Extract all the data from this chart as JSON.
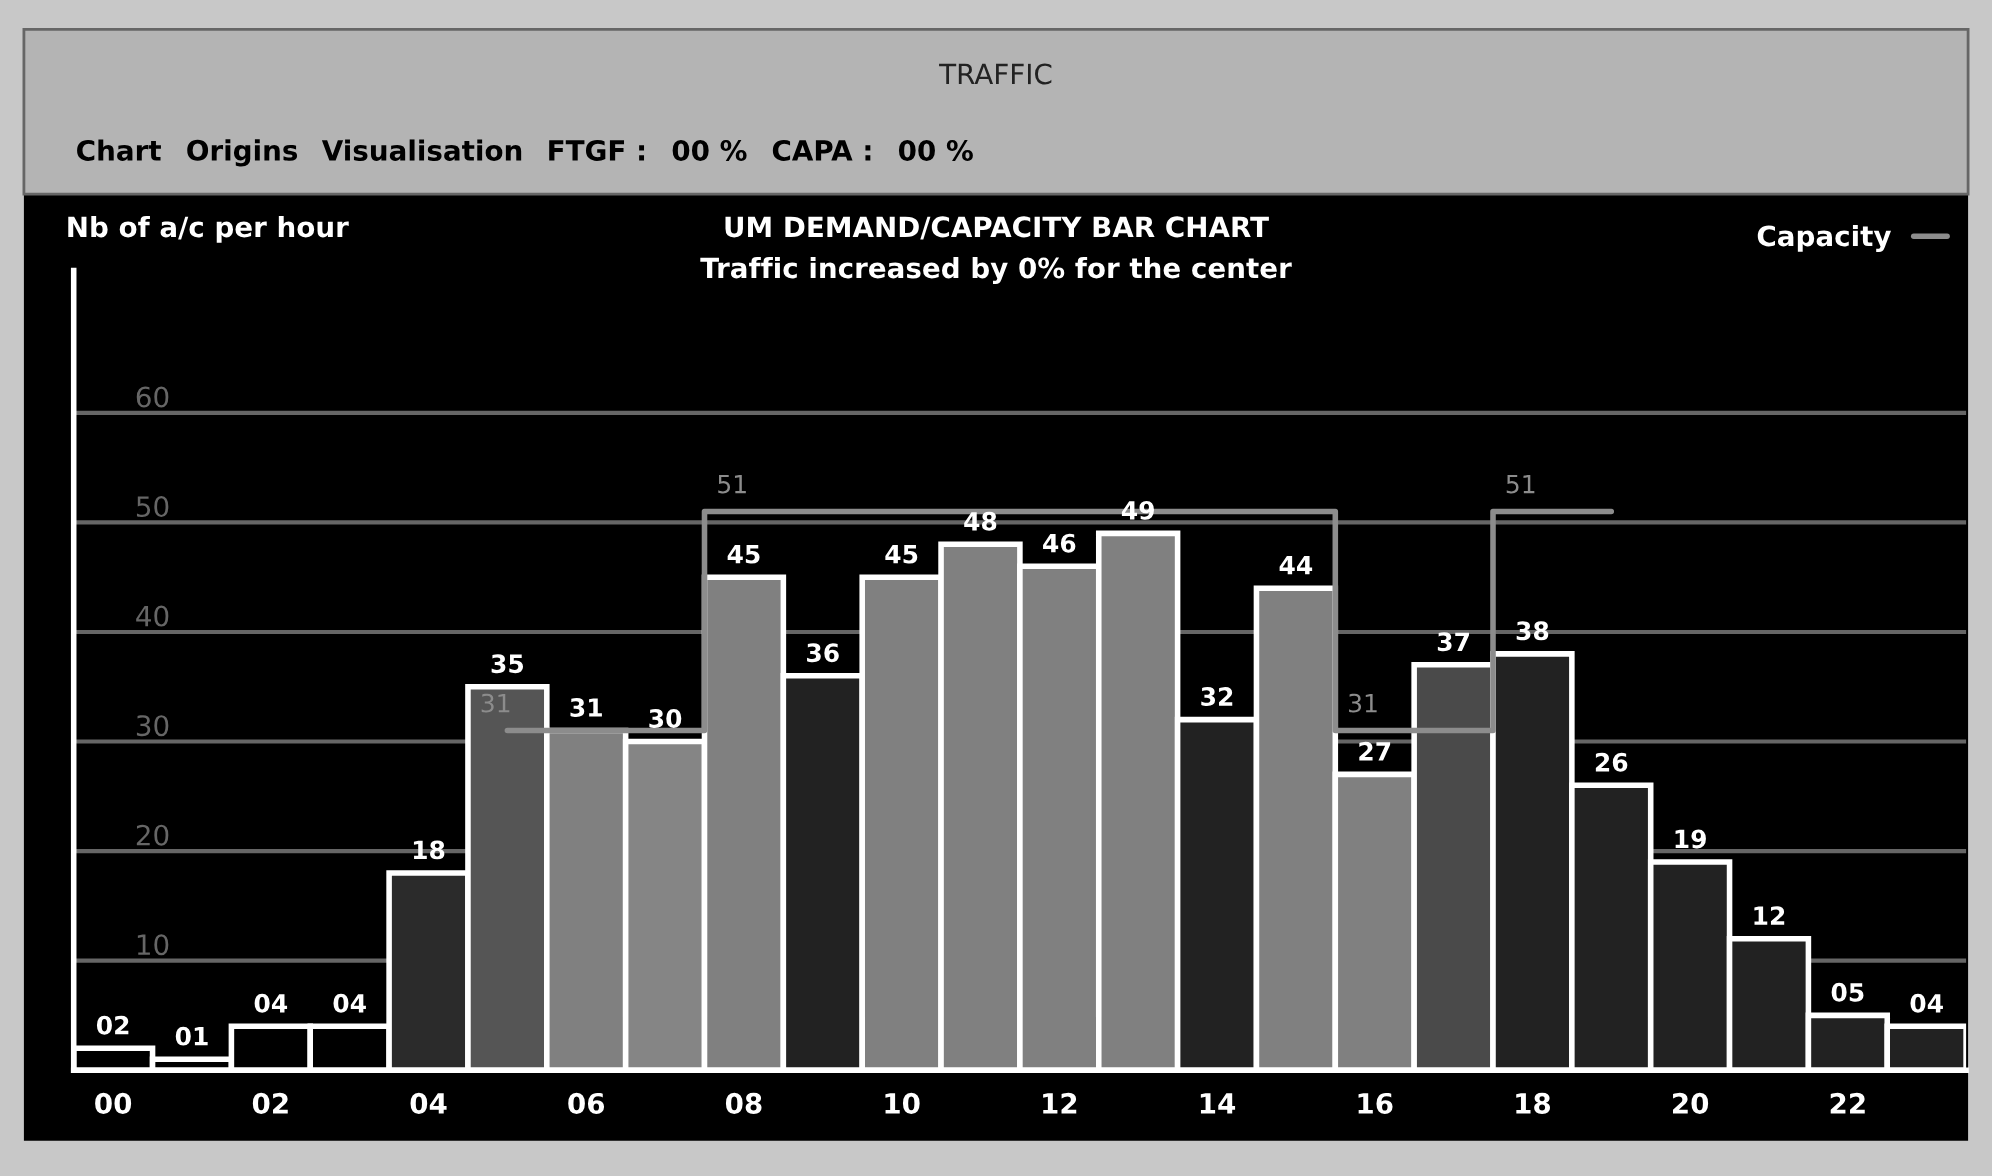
{
  "chart_data": {
    "type": "bar",
    "title": "UM DEMAND/CAPACITY BAR CHART",
    "subtitle": "Traffic increased by 0% for the center",
    "ylabel": "Nb of a/c per hour",
    "annotations": [
      "TRAFFIC",
      "Chart",
      "Origins",
      "Visualisation",
      "FTGF :",
      "00 %",
      "CAPA :",
      "00 %"
    ],
    "categories": [
      "00",
      null,
      "02",
      null,
      "04",
      null,
      "06",
      null,
      "08",
      null,
      "10",
      null,
      "12",
      null,
      "14",
      null,
      "16",
      null,
      "18",
      null,
      "20",
      null,
      "22",
      null
    ],
    "series": [
      {
        "colors": [
          "#000000",
          "#000000",
          "#000000",
          "#000000",
          "#2b2b2b",
          "#555555",
          "#808080",
          "#858585",
          "#808080",
          "#222222",
          "#808080",
          "#808080",
          "#808080",
          "#808080",
          "#222222",
          "#808080",
          "#808080",
          "#4a4a4a",
          "#222222",
          "#222222",
          "#222222",
          "#222222",
          "#222222",
          "#222222"
        ],
        "values": [
          2,
          1,
          4,
          4,
          18,
          35,
          31,
          30,
          45,
          36,
          45,
          48,
          46,
          49,
          32,
          44,
          27,
          37,
          38,
          26,
          19,
          12,
          5,
          4
        ],
        "value_labels": [
          "02",
          "01",
          "04",
          "04",
          "18",
          "35",
          "31",
          "30",
          "45",
          "36",
          "45",
          "48",
          "46",
          "49",
          "32",
          "44",
          "27",
          "37",
          "38",
          "26",
          "19",
          "12",
          "05",
          "04"
        ]
      },
      {
        "type": "step",
        "name": "Capacity",
        "color": "#8c8c8c",
        "values": [
          null,
          null,
          null,
          null,
          null,
          31,
          31,
          31,
          51,
          51,
          51,
          51,
          51,
          51,
          51,
          51,
          31,
          31,
          51,
          51,
          null,
          null,
          null,
          null
        ],
        "value_labels": [
          null,
          null,
          null,
          null,
          null,
          "31",
          null,
          null,
          "51",
          null,
          null,
          null,
          null,
          null,
          null,
          null,
          "31",
          null,
          "51",
          null,
          null,
          null,
          null,
          null
        ]
      }
    ],
    "ylim": [
      0,
      73
    ],
    "yticks": [
      10,
      20,
      30,
      40,
      50,
      60
    ],
    "grid": "y",
    "legend": "top right"
  }
}
